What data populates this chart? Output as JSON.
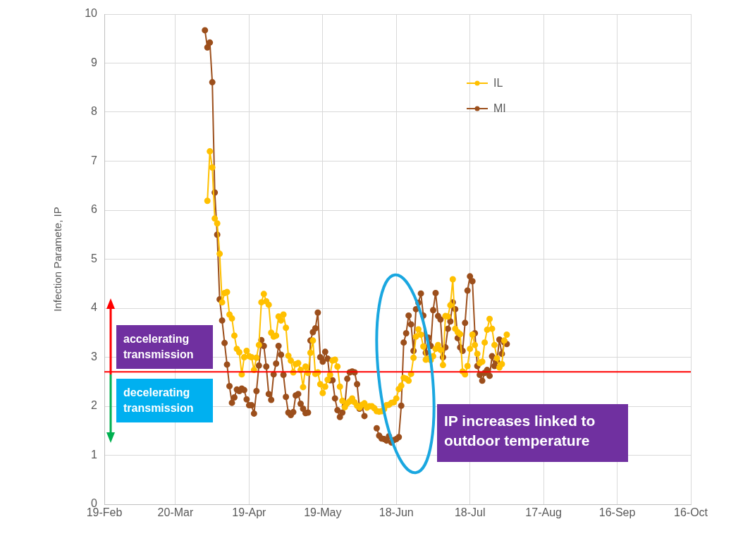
{
  "chart_data": {
    "type": "line",
    "ylabel": "Infection Paramete, IP",
    "legend": "top right",
    "marker": "circle",
    "grid": true,
    "xlim": [
      "--02-19",
      "--10-16"
    ],
    "xticks": [
      {
        "value": "--02-19",
        "label": "19-Feb"
      },
      {
        "value": "--03-20",
        "label": "20-Mar"
      },
      {
        "value": "--04-19",
        "label": "19-Apr"
      },
      {
        "value": "--05-19",
        "label": "19-May"
      },
      {
        "value": "--06-18",
        "label": "18-Jun"
      },
      {
        "value": "--07-18",
        "label": "18-Jul"
      },
      {
        "value": "--08-17",
        "label": "17-Aug"
      },
      {
        "value": "--09-16",
        "label": "16-Sep"
      },
      {
        "value": "--10-16",
        "label": "16-Oct"
      }
    ],
    "ylim": [
      0,
      10
    ],
    "yticks": [
      0,
      1,
      2,
      3,
      4,
      5,
      6,
      7,
      8,
      9,
      10
    ],
    "x": [
      "--04-01",
      "--04-02",
      "--04-03",
      "--04-04",
      "--04-05",
      "--04-06",
      "--04-07",
      "--04-08",
      "--04-09",
      "--04-10",
      "--04-11",
      "--04-12",
      "--04-13",
      "--04-14",
      "--04-15",
      "--04-16",
      "--04-17",
      "--04-18",
      "--04-19",
      "--04-20",
      "--04-21",
      "--04-22",
      "--04-23",
      "--04-24",
      "--04-25",
      "--04-26",
      "--04-27",
      "--04-28",
      "--04-29",
      "--04-30",
      "--05-01",
      "--05-02",
      "--05-03",
      "--05-04",
      "--05-05",
      "--05-06",
      "--05-07",
      "--05-08",
      "--05-09",
      "--05-10",
      "--05-11",
      "--05-12",
      "--05-13",
      "--05-14",
      "--05-15",
      "--05-16",
      "--05-17",
      "--05-18",
      "--05-19",
      "--05-20",
      "--05-21",
      "--05-22",
      "--05-23",
      "--05-24",
      "--05-25",
      "--05-26",
      "--05-27",
      "--05-28",
      "--05-29",
      "--05-30",
      "--05-31",
      "--06-01",
      "--06-02",
      "--06-03",
      "--06-04",
      "--06-05",
      "--06-06",
      "--06-07",
      "--06-08",
      "--06-09",
      "--06-10",
      "--06-11",
      "--06-12",
      "--06-13",
      "--06-14",
      "--06-15",
      "--06-16",
      "--06-17",
      "--06-18",
      "--06-19",
      "--06-20",
      "--06-21",
      "--06-22",
      "--06-23",
      "--06-24",
      "--06-25",
      "--06-26",
      "--06-27",
      "--06-28",
      "--06-29",
      "--06-30",
      "--07-01",
      "--07-02",
      "--07-03",
      "--07-04",
      "--07-05",
      "--07-06",
      "--07-07",
      "--07-08",
      "--07-09",
      "--07-10",
      "--07-11",
      "--07-12",
      "--07-13",
      "--07-14",
      "--07-15",
      "--07-16",
      "--07-17",
      "--07-18",
      "--07-19",
      "--07-20",
      "--07-21",
      "--07-22",
      "--07-23",
      "--07-24",
      "--07-25",
      "--07-26",
      "--07-27",
      "--07-28",
      "--07-29",
      "--07-30",
      "--07-31",
      "--08-01",
      "--08-02"
    ],
    "series": [
      {
        "name": "IL",
        "color": "#ffc000",
        "values": [
          null,
          6.19,
          7.2,
          6.87,
          5.83,
          5.73,
          5.11,
          4.12,
          4.31,
          4.33,
          3.87,
          3.79,
          3.44,
          3.17,
          3.1,
          2.65,
          3.0,
          3.13,
          3.02,
          3.0,
          2.74,
          2.99,
          3.25,
          4.12,
          4.29,
          4.14,
          4.07,
          3.5,
          3.42,
          3.44,
          3.83,
          3.75,
          3.87,
          3.6,
          3.03,
          2.93,
          2.69,
          2.86,
          2.88,
          2.74,
          2.39,
          2.81,
          2.68,
          3.09,
          3.34,
          2.66,
          2.69,
          2.45,
          2.27,
          2.4,
          2.54,
          2.64,
          2.93,
          2.95,
          2.81,
          2.4,
          2.11,
          1.98,
          2.06,
          2.1,
          2.16,
          2.08,
          2.01,
          1.97,
          2.03,
          2.06,
          1.97,
          2.0,
          2.0,
          1.96,
          1.9,
          1.89,
          1.9,
          1.94,
          2.02,
          2.03,
          2.07,
          2.08,
          2.16,
          2.35,
          2.42,
          2.58,
          2.56,
          2.52,
          2.66,
          2.99,
          3.42,
          3.57,
          3.46,
          3.22,
          2.95,
          2.97,
          2.94,
          3.02,
          3.17,
          3.25,
          3.15,
          2.84,
          3.84,
          3.83,
          4.06,
          4.59,
          3.58,
          3.51,
          3.47,
          2.71,
          2.65,
          2.82,
          3.17,
          3.46,
          3.25,
          3.07,
          2.88,
          2.91,
          3.3,
          3.56,
          3.78,
          3.58,
          3.25,
          2.98,
          2.79,
          2.86,
          3.34,
          3.46
        ]
      },
      {
        "name": "MI",
        "color": "#9c4f1c",
        "values": [
          9.67,
          9.32,
          9.42,
          8.61,
          6.36,
          5.5,
          4.18,
          3.75,
          3.29,
          2.85,
          2.41,
          2.07,
          2.18,
          2.34,
          2.31,
          2.36,
          2.33,
          2.14,
          2.02,
          2.02,
          1.85,
          2.31,
          2.83,
          3.35,
          3.23,
          2.81,
          2.25,
          2.13,
          2.65,
          2.87,
          3.23,
          3.05,
          2.64,
          2.19,
          1.87,
          1.82,
          1.88,
          2.22,
          2.25,
          2.05,
          1.95,
          1.86,
          1.87,
          3.34,
          3.51,
          3.59,
          3.91,
          3.0,
          2.91,
          3.11,
          2.97,
          2.53,
          2.53,
          2.16,
          1.92,
          1.78,
          1.87,
          2.01,
          2.56,
          2.69,
          2.71,
          2.69,
          2.45,
          1.95,
          2.01,
          1.8,
          null,
          null,
          null,
          null,
          1.55,
          1.4,
          1.34,
          1.33,
          1.3,
          1.39,
          1.26,
          1.31,
          1.33,
          1.37,
          2.01,
          3.3,
          3.49,
          3.85,
          3.67,
          3.13,
          3.98,
          4.11,
          4.3,
          3.85,
          3.09,
          3.4,
          3.23,
          3.96,
          4.31,
          3.84,
          3.77,
          3.0,
          3.2,
          3.58,
          3.73,
          4.12,
          3.98,
          3.39,
          3.2,
          3.13,
          3.7,
          4.36,
          4.65,
          4.55,
          3.49,
          2.82,
          2.64,
          2.52,
          2.68,
          2.74,
          2.62,
          3.02,
          2.82,
          2.92,
          3.36,
          3.07,
          3.3,
          3.27
        ]
      }
    ],
    "ref_lines": [
      {
        "axis": "y",
        "value": 2.7,
        "color": "#ff0000"
      }
    ],
    "annotations": [
      "accelerating transmission",
      "decelerating transmission",
      "IP increases linked to outdoor temperature"
    ]
  }
}
